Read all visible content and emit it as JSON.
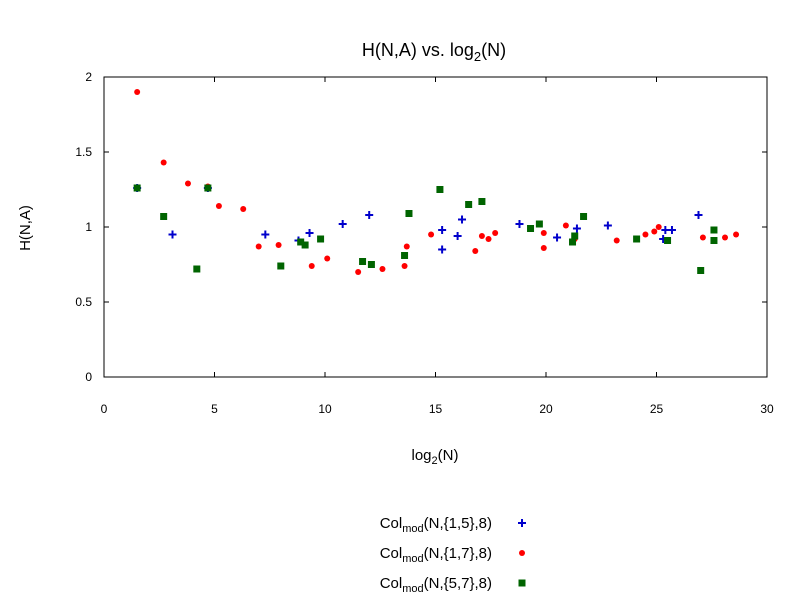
{
  "chart_data": {
    "type": "scatter",
    "title": {
      "main": "H(N,A) vs. log",
      "sub": "2",
      "tail": "(N)"
    },
    "xlabel": {
      "main": "log",
      "sub": "2",
      "tail": "(N)"
    },
    "ylabel": "H(N,A)",
    "xlim": [
      0,
      30
    ],
    "ylim": [
      0,
      2
    ],
    "xticks": [
      0,
      5,
      10,
      15,
      20,
      25,
      30
    ],
    "yticks": [
      0,
      0.5,
      1,
      1.5,
      2
    ],
    "xtick_labels": [
      "0",
      "5",
      "10",
      "15",
      "20",
      "25",
      "30"
    ],
    "ytick_labels": [
      "0",
      "0.5",
      "1",
      "1.5",
      "2"
    ],
    "grid": false,
    "legend_position": "bottom-center",
    "series": [
      {
        "name": {
          "main": "Col",
          "sub": "mod",
          "tail": "(N,{1,5},8)"
        },
        "marker": "plus",
        "color": "#0000cc",
        "points": [
          [
            1.5,
            1.26
          ],
          [
            3.1,
            0.95
          ],
          [
            4.7,
            1.26
          ],
          [
            7.3,
            0.95
          ],
          [
            8.8,
            0.91
          ],
          [
            9.3,
            0.96
          ],
          [
            10.8,
            1.02
          ],
          [
            12.0,
            1.08
          ],
          [
            15.3,
            0.85
          ],
          [
            15.3,
            0.98
          ],
          [
            16.0,
            0.94
          ],
          [
            16.2,
            1.05
          ],
          [
            18.8,
            1.02
          ],
          [
            20.5,
            0.93
          ],
          [
            21.4,
            0.99
          ],
          [
            22.8,
            1.01
          ],
          [
            25.4,
            0.98
          ],
          [
            25.7,
            0.98
          ],
          [
            26.9,
            1.08
          ],
          [
            25.3,
            0.92
          ]
        ]
      },
      {
        "name": {
          "main": "Col",
          "sub": "mod",
          "tail": "(N,{1,7},8)"
        },
        "marker": "circle",
        "color": "#ff0000",
        "points": [
          [
            1.5,
            1.9
          ],
          [
            2.7,
            1.43
          ],
          [
            3.8,
            1.29
          ],
          [
            4.7,
            1.27
          ],
          [
            5.2,
            1.14
          ],
          [
            6.3,
            1.12
          ],
          [
            7.0,
            0.87
          ],
          [
            7.9,
            0.88
          ],
          [
            9.4,
            0.74
          ],
          [
            10.1,
            0.79
          ],
          [
            11.5,
            0.7
          ],
          [
            12.6,
            0.72
          ],
          [
            13.6,
            0.74
          ],
          [
            13.7,
            0.87
          ],
          [
            14.8,
            0.95
          ],
          [
            16.8,
            0.84
          ],
          [
            17.1,
            0.94
          ],
          [
            17.4,
            0.92
          ],
          [
            17.7,
            0.96
          ],
          [
            19.9,
            0.96
          ],
          [
            19.9,
            0.86
          ],
          [
            20.9,
            1.01
          ],
          [
            21.3,
            0.92
          ],
          [
            23.2,
            0.91
          ],
          [
            24.5,
            0.95
          ],
          [
            24.9,
            0.97
          ],
          [
            25.1,
            1.0
          ],
          [
            27.1,
            0.93
          ],
          [
            28.1,
            0.93
          ],
          [
            28.6,
            0.95
          ]
        ]
      },
      {
        "name": {
          "main": "Col",
          "sub": "mod",
          "tail": "(N,{5,7},8)"
        },
        "marker": "square",
        "color": "#006400",
        "points": [
          [
            1.5,
            1.26
          ],
          [
            2.7,
            1.07
          ],
          [
            4.2,
            0.72
          ],
          [
            4.7,
            1.26
          ],
          [
            8.0,
            0.74
          ],
          [
            8.9,
            0.9
          ],
          [
            9.1,
            0.88
          ],
          [
            9.8,
            0.92
          ],
          [
            11.7,
            0.77
          ],
          [
            12.1,
            0.75
          ],
          [
            13.6,
            0.81
          ],
          [
            13.8,
            1.09
          ],
          [
            15.2,
            1.25
          ],
          [
            16.5,
            1.15
          ],
          [
            17.1,
            1.17
          ],
          [
            19.3,
            0.99
          ],
          [
            19.7,
            1.02
          ],
          [
            21.2,
            0.9
          ],
          [
            21.3,
            0.94
          ],
          [
            21.7,
            1.07
          ],
          [
            24.1,
            0.92
          ],
          [
            25.5,
            0.91
          ],
          [
            27.0,
            0.71
          ],
          [
            27.6,
            0.98
          ],
          [
            27.6,
            0.91
          ]
        ]
      }
    ]
  }
}
